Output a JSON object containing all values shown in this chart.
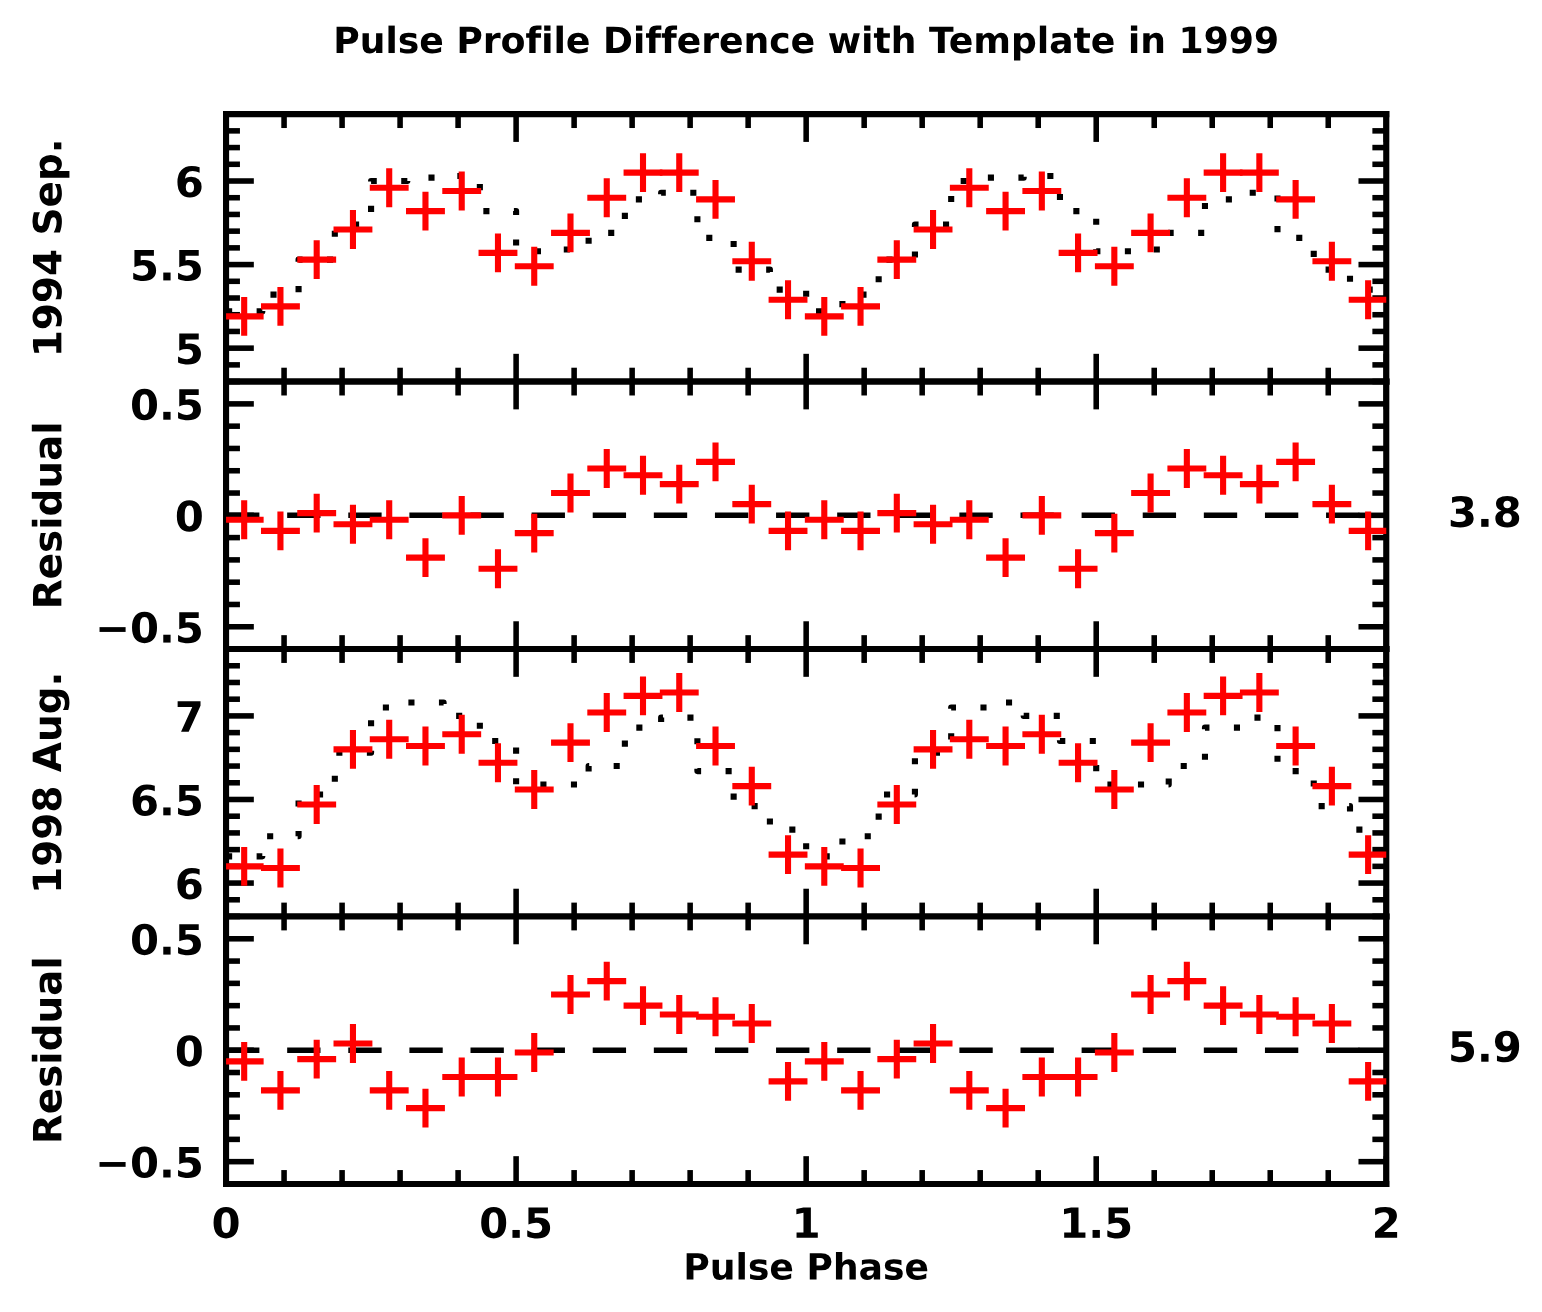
{
  "chart_data": [
    {
      "type": "scatter",
      "title": "Pulse Profile Difference with Template in 1999",
      "ylabel": "1994 Sep.",
      "xlim": [
        0,
        2
      ],
      "xticks": [
        0,
        0.5,
        1,
        1.5,
        2
      ],
      "ylim": [
        4.8,
        6.4
      ],
      "yticks": [
        5,
        5.5,
        6
      ],
      "tick_labels": "y",
      "series": [
        {
          "type": "step",
          "color": "#000000",
          "line_style": "dotted",
          "x": [
            0,
            0.0625,
            0.125,
            0.1875,
            0.25,
            0.3125,
            0.375,
            0.4375,
            0.5,
            0.5625,
            0.625,
            0.6875,
            0.75,
            0.8125,
            0.875,
            0.9375,
            1,
            1.0625,
            1.125,
            1.1875,
            1.25,
            1.3125,
            1.375,
            1.4375,
            1.5,
            1.5625,
            1.625,
            1.6875,
            1.75,
            1.8125,
            1.875,
            1.9375,
            2
          ],
          "values": [
            5.22,
            5.32,
            5.53,
            5.74,
            6.0,
            6.02,
            6.03,
            5.82,
            5.58,
            5.59,
            5.69,
            5.89,
            5.93,
            5.66,
            5.47,
            5.35,
            5.22,
            5.32,
            5.53,
            5.74,
            6.0,
            6.02,
            6.03,
            5.82,
            5.58,
            5.59,
            5.69,
            5.89,
            5.93,
            5.66,
            5.47,
            5.35,
            5.35
          ]
        },
        {
          "color": "#ff0000",
          "marker": "cross",
          "x": [
            0.03125,
            0.09375,
            0.15625,
            0.21875,
            0.28125,
            0.34375,
            0.40625,
            0.46875,
            0.53125,
            0.59375,
            0.65625,
            0.71875,
            0.78125,
            0.84375,
            0.90625,
            0.96875,
            1.03125,
            1.09375,
            1.15625,
            1.21875,
            1.28125,
            1.34375,
            1.40625,
            1.46875,
            1.53125,
            1.59375,
            1.65625,
            1.71875,
            1.78125,
            1.84375,
            1.90625,
            1.96875
          ],
          "values": [
            5.19,
            5.25,
            5.53,
            5.71,
            5.96,
            5.82,
            5.94,
            5.57,
            5.49,
            5.69,
            5.9,
            6.05,
            6.05,
            5.89,
            5.52,
            5.29,
            5.19,
            5.25,
            5.53,
            5.71,
            5.96,
            5.82,
            5.94,
            5.57,
            5.49,
            5.69,
            5.9,
            6.05,
            6.05,
            5.89,
            5.52,
            5.29
          ]
        }
      ]
    },
    {
      "type": "scatter",
      "ylabel": "Residual",
      "xlim": [
        0,
        2
      ],
      "xticks": [
        0,
        0.5,
        1,
        1.5,
        2
      ],
      "ylim": [
        -0.6,
        0.6
      ],
      "yticks": [
        {
          "value": -0.5,
          "label": "−0.5"
        },
        0,
        0.5
      ],
      "tick_labels": "y",
      "annotations": [
        "3.8"
      ],
      "ref_lines": [
        {
          "axis": "y",
          "value": 0,
          "color": "#000000",
          "line_style": "dashed"
        }
      ],
      "series": [
        {
          "color": "#ff0000",
          "marker": "cross",
          "x": [
            0.03125,
            0.09375,
            0.15625,
            0.21875,
            0.28125,
            0.34375,
            0.40625,
            0.46875,
            0.53125,
            0.59375,
            0.65625,
            0.71875,
            0.78125,
            0.84375,
            0.90625,
            0.96875,
            1.03125,
            1.09375,
            1.15625,
            1.21875,
            1.28125,
            1.34375,
            1.40625,
            1.46875,
            1.53125,
            1.59375,
            1.65625,
            1.71875,
            1.78125,
            1.84375,
            1.90625,
            1.96875
          ],
          "values": [
            -0.02,
            -0.07,
            0.01,
            -0.04,
            -0.02,
            -0.19,
            0.0,
            -0.24,
            -0.08,
            0.1,
            0.21,
            0.18,
            0.14,
            0.24,
            0.05,
            -0.07,
            -0.02,
            -0.07,
            0.01,
            -0.04,
            -0.02,
            -0.19,
            0.0,
            -0.24,
            -0.08,
            0.1,
            0.21,
            0.18,
            0.14,
            0.24,
            0.05,
            -0.07
          ]
        }
      ]
    },
    {
      "type": "scatter",
      "ylabel": "1998 Aug.",
      "xlim": [
        0,
        2
      ],
      "xticks": [
        0,
        0.5,
        1,
        1.5,
        2
      ],
      "ylim": [
        5.8,
        7.4
      ],
      "yticks": [
        6,
        6.5,
        7
      ],
      "tick_labels": "y",
      "series": [
        {
          "type": "step",
          "color": "#000000",
          "line_style": "dotted",
          "x": [
            0,
            0.0625,
            0.125,
            0.1875,
            0.25,
            0.3125,
            0.375,
            0.4375,
            0.5,
            0.5625,
            0.625,
            0.6875,
            0.75,
            0.8125,
            0.875,
            0.9375,
            1,
            1.0625,
            1.125,
            1.1875,
            1.25,
            1.3125,
            1.375,
            1.4375,
            1.5,
            1.5625,
            1.625,
            1.6875,
            1.75,
            1.8125,
            1.875,
            1.9375,
            2
          ],
          "values": [
            6.16,
            6.28,
            6.53,
            6.78,
            7.05,
            7.08,
            7.0,
            6.85,
            6.59,
            6.59,
            6.7,
            6.93,
            6.99,
            6.67,
            6.46,
            6.32,
            6.16,
            6.28,
            6.53,
            6.78,
            7.05,
            7.08,
            7.0,
            6.85,
            6.59,
            6.59,
            6.7,
            6.93,
            6.99,
            6.67,
            6.46,
            6.32,
            6.32
          ]
        },
        {
          "color": "#ff0000",
          "marker": "cross",
          "x": [
            0.03125,
            0.09375,
            0.15625,
            0.21875,
            0.28125,
            0.34375,
            0.40625,
            0.46875,
            0.53125,
            0.59375,
            0.65625,
            0.71875,
            0.78125,
            0.84375,
            0.90625,
            0.96875,
            1.03125,
            1.09375,
            1.15625,
            1.21875,
            1.28125,
            1.34375,
            1.40625,
            1.46875,
            1.53125,
            1.59375,
            1.65625,
            1.71875,
            1.78125,
            1.84375,
            1.90625,
            1.96875
          ],
          "values": [
            6.1,
            6.09,
            6.47,
            6.8,
            6.86,
            6.82,
            6.89,
            6.72,
            6.56,
            6.84,
            7.02,
            7.12,
            7.14,
            6.82,
            6.58,
            6.17,
            6.1,
            6.09,
            6.47,
            6.8,
            6.86,
            6.82,
            6.89,
            6.72,
            6.56,
            6.84,
            7.02,
            7.12,
            7.14,
            6.82,
            6.58,
            6.17
          ]
        }
      ]
    },
    {
      "type": "scatter",
      "ylabel": "Residual",
      "xlabel": "Pulse Phase",
      "xlim": [
        0,
        2
      ],
      "xticks": [
        0,
        0.5,
        1,
        1.5,
        2
      ],
      "ylim": [
        -0.6,
        0.6
      ],
      "yticks": [
        {
          "value": -0.5,
          "label": "−0.5"
        },
        0,
        0.5
      ],
      "annotations": [
        "5.9"
      ],
      "ref_lines": [
        {
          "axis": "y",
          "value": 0,
          "color": "#000000",
          "line_style": "dashed"
        }
      ],
      "series": [
        {
          "color": "#ff0000",
          "marker": "cross",
          "x": [
            0.03125,
            0.09375,
            0.15625,
            0.21875,
            0.28125,
            0.34375,
            0.40625,
            0.46875,
            0.53125,
            0.59375,
            0.65625,
            0.71875,
            0.78125,
            0.84375,
            0.90625,
            0.96875,
            1.03125,
            1.09375,
            1.15625,
            1.21875,
            1.28125,
            1.34375,
            1.40625,
            1.46875,
            1.53125,
            1.59375,
            1.65625,
            1.71875,
            1.78125,
            1.84375,
            1.90625,
            1.96875
          ],
          "values": [
            -0.05,
            -0.18,
            -0.04,
            0.03,
            -0.18,
            -0.26,
            -0.12,
            -0.12,
            -0.01,
            0.25,
            0.31,
            0.2,
            0.16,
            0.15,
            0.12,
            -0.14,
            -0.05,
            -0.18,
            -0.04,
            0.03,
            -0.18,
            -0.26,
            -0.12,
            -0.12,
            -0.01,
            0.25,
            0.31,
            0.2,
            0.16,
            0.15,
            0.12,
            -0.14
          ]
        }
      ]
    }
  ]
}
